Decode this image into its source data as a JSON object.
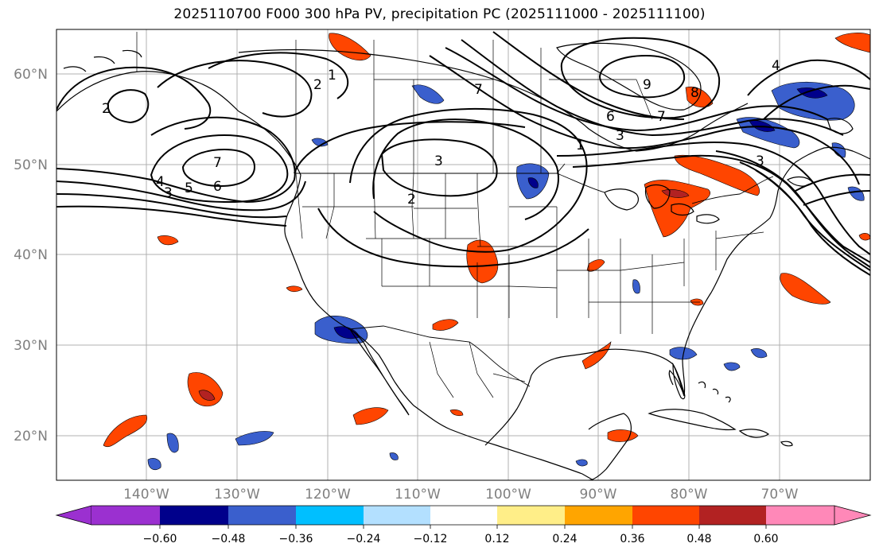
{
  "title": "2025110700 F000 300 hPa PV, precipitation PC (2025111000 - 2025111100)",
  "map": {
    "projection": "PlateCarree",
    "lon_range": [
      -150,
      -60
    ],
    "lat_range": [
      15,
      65
    ],
    "lat_labels": [
      "20°N",
      "30°N",
      "40°N",
      "50°N",
      "60°N"
    ],
    "lon_labels": [
      "140°W",
      "130°W",
      "120°W",
      "110°W",
      "100°W",
      "90°W",
      "80°W",
      "70°W"
    ],
    "grid": true,
    "grid_color": "#b0b0b0",
    "coastline_color": "#000000",
    "pv_contour_color": "#000000",
    "pv_contour_labels": [
      "1",
      "2",
      "2",
      "2",
      "3",
      "3",
      "3",
      "3",
      "4",
      "4",
      "5",
      "6",
      "6",
      "7",
      "7",
      "7",
      "8",
      "9",
      "1"
    ]
  },
  "colorbar": {
    "ticks": [
      "−0.60",
      "−0.48",
      "−0.36",
      "−0.24",
      "−0.12",
      "0.12",
      "0.24",
      "0.36",
      "0.48",
      "0.60"
    ],
    "colors": [
      "#9b30d0",
      "#00008b",
      "#3a5fcd",
      "#00bfff",
      "#b3e0ff",
      "#ffffff",
      "#ffee88",
      "#ffa500",
      "#ff4500",
      "#b22222",
      "#ff88b8"
    ]
  }
}
